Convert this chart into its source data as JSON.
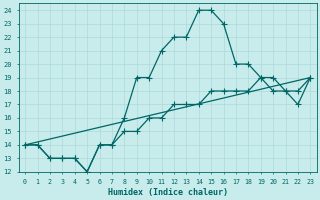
{
  "xlabel": "Humidex (Indice chaleur)",
  "bg_color": "#c8ecec",
  "grid_color": "#b0d8d8",
  "line_color": "#006666",
  "xlim": [
    -0.5,
    23.5
  ],
  "ylim": [
    12,
    24.5
  ],
  "xticks": [
    0,
    1,
    2,
    3,
    4,
    5,
    6,
    7,
    8,
    9,
    10,
    11,
    12,
    13,
    14,
    15,
    16,
    17,
    18,
    19,
    20,
    21,
    22,
    23
  ],
  "yticks": [
    12,
    13,
    14,
    15,
    16,
    17,
    18,
    19,
    20,
    21,
    22,
    23,
    24
  ],
  "line1_x": [
    0,
    1,
    2,
    3,
    4,
    5,
    6,
    7,
    8,
    9,
    10,
    11,
    12,
    13,
    14,
    15,
    16,
    17,
    18,
    19,
    20,
    21,
    22,
    23
  ],
  "line1_y": [
    14,
    14,
    13,
    13,
    13,
    12,
    14,
    14,
    16,
    19,
    19,
    21,
    22,
    22,
    24,
    24,
    23,
    20,
    20,
    19,
    19,
    18,
    17,
    19
  ],
  "line2_x": [
    0,
    1,
    2,
    3,
    4,
    5,
    6,
    7,
    8,
    9,
    10,
    11,
    12,
    13,
    14,
    15,
    16,
    17,
    18,
    19,
    20,
    21,
    22,
    23
  ],
  "line2_y": [
    14,
    14,
    13,
    13,
    13,
    12,
    14,
    14,
    15,
    15,
    16,
    16,
    17,
    17,
    17,
    18,
    18,
    18,
    18,
    19,
    18,
    18,
    18,
    19
  ],
  "line3_x": [
    0,
    23
  ],
  "line3_y": [
    14,
    19
  ],
  "marker_size": 2.5,
  "linewidth": 0.9
}
